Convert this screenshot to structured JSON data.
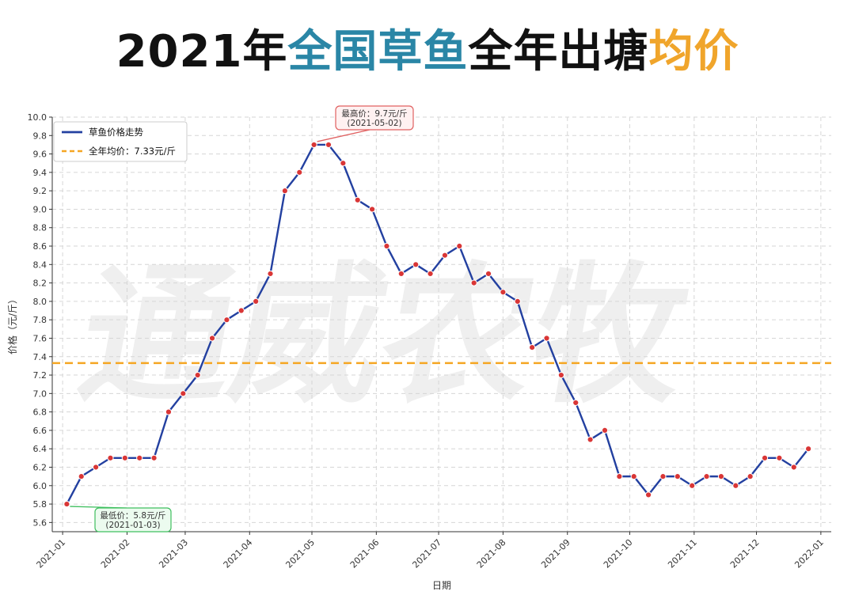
{
  "title": {
    "part1": "2021年",
    "part2": "全国草鱼",
    "part3": "全年出塘",
    "part4": "均价"
  },
  "watermark": "通威农牧",
  "colors": {
    "title_blue": "#2a86a6",
    "title_orange": "#f0a52b",
    "line": "#2340a0",
    "marker": "#d93636",
    "avg_line": "#f5a623",
    "max_annotation": "#e06060",
    "min_annotation": "#3fbf5f"
  },
  "chart_data": {
    "type": "line",
    "xlabel": "日期",
    "ylabel": "价格（元/斤）",
    "ylim": [
      5.5,
      10.0
    ],
    "xlim": [
      "2020-12-27",
      "2022-01-06"
    ],
    "grid": true,
    "legend_position": "top-left",
    "y_ticks": [
      "5.6",
      "5.8",
      "6.0",
      "6.2",
      "6.4",
      "6.6",
      "6.8",
      "7.0",
      "7.2",
      "7.4",
      "7.6",
      "7.8",
      "8.0",
      "8.2",
      "8.4",
      "8.6",
      "8.8",
      "9.0",
      "9.2",
      "9.4",
      "9.6",
      "9.8",
      "10.0"
    ],
    "x_ticks": [
      "2021-01",
      "2021-02",
      "2021-03",
      "2021-04",
      "2021-05",
      "2021-06",
      "2021-07",
      "2021-08",
      "2021-09",
      "2021-10",
      "2021-11",
      "2021-12",
      "2022-01"
    ],
    "series": [
      {
        "name": "草鱼价格走势",
        "x": [
          "2021-01-03",
          "2021-01-10",
          "2021-01-17",
          "2021-01-24",
          "2021-01-31",
          "2021-02-07",
          "2021-02-14",
          "2021-02-21",
          "2021-02-28",
          "2021-03-07",
          "2021-03-14",
          "2021-03-21",
          "2021-03-28",
          "2021-04-04",
          "2021-04-11",
          "2021-04-18",
          "2021-04-25",
          "2021-05-02",
          "2021-05-09",
          "2021-05-16",
          "2021-05-23",
          "2021-05-30",
          "2021-06-06",
          "2021-06-13",
          "2021-06-20",
          "2021-06-27",
          "2021-07-04",
          "2021-07-11",
          "2021-07-18",
          "2021-07-25",
          "2021-08-01",
          "2021-08-08",
          "2021-08-15",
          "2021-08-22",
          "2021-08-29",
          "2021-09-05",
          "2021-09-12",
          "2021-09-19",
          "2021-09-26",
          "2021-10-03",
          "2021-10-10",
          "2021-10-17",
          "2021-10-24",
          "2021-10-31",
          "2021-11-07",
          "2021-11-14",
          "2021-11-21",
          "2021-11-28",
          "2021-12-05",
          "2021-12-12",
          "2021-12-19",
          "2021-12-26"
        ],
        "values": [
          5.8,
          6.1,
          6.2,
          6.3,
          6.3,
          6.3,
          6.3,
          6.8,
          7.0,
          7.2,
          7.6,
          7.8,
          7.9,
          8.0,
          8.3,
          9.2,
          9.4,
          9.7,
          9.7,
          9.5,
          9.1,
          9.0,
          8.6,
          8.3,
          8.4,
          8.3,
          8.5,
          8.6,
          8.2,
          8.3,
          8.1,
          8.0,
          7.5,
          7.6,
          7.2,
          6.9,
          6.5,
          6.6,
          6.1,
          6.1,
          5.9,
          6.1,
          6.1,
          6.0,
          6.1,
          6.1,
          6.0,
          6.1,
          6.3,
          6.3,
          6.2,
          6.4
        ]
      }
    ],
    "average": {
      "name": "全年均价：7.33元/斤",
      "value": 7.33
    },
    "annotations": {
      "max": {
        "line1": "最高价：9.7元/斤",
        "line2": "(2021-05-02)",
        "x": "2021-05-02",
        "y": 9.7
      },
      "min": {
        "line1": "最低价：5.8元/斤",
        "line2": "(2021-01-03)",
        "x": "2021-01-03",
        "y": 5.8
      }
    }
  }
}
